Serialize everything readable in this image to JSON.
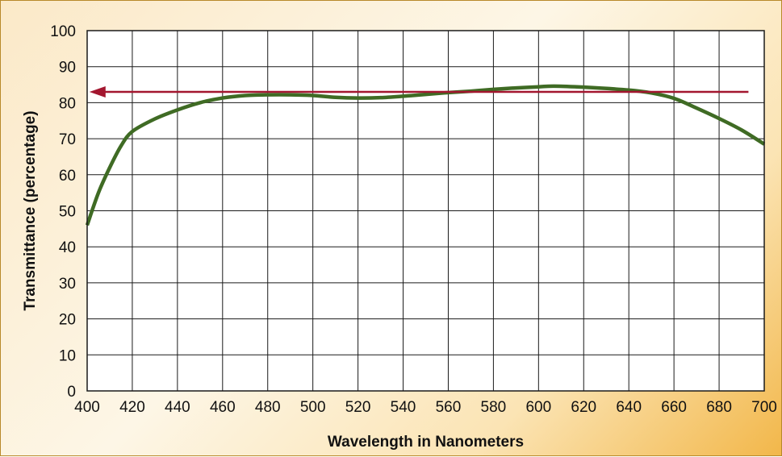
{
  "chart_data": {
    "type": "line",
    "title": "",
    "xlabel": "Wavelength in Nanometers",
    "ylabel": "Transmittance (percentage)",
    "xlim": [
      400,
      700
    ],
    "ylim": [
      0,
      100
    ],
    "x_ticks": [
      400,
      420,
      440,
      460,
      480,
      500,
      520,
      540,
      560,
      580,
      600,
      620,
      640,
      660,
      680,
      700
    ],
    "y_ticks": [
      0,
      10,
      20,
      30,
      40,
      50,
      60,
      70,
      80,
      90,
      100
    ],
    "grid": true,
    "series": [
      {
        "color": "#3f6b24",
        "x": [
          400,
          405,
          410,
          415,
          420,
          430,
          440,
          450,
          460,
          470,
          480,
          490,
          500,
          510,
          520,
          530,
          540,
          550,
          560,
          570,
          580,
          590,
          600,
          607,
          620,
          640,
          650,
          660,
          670,
          680,
          690,
          700
        ],
        "y": [
          46,
          55,
          62,
          68,
          72,
          75.5,
          78,
          80,
          81.3,
          82,
          82.2,
          82.2,
          82,
          81.5,
          81.3,
          81.4,
          81.8,
          82.3,
          82.8,
          83.2,
          83.7,
          84.1,
          84.4,
          84.6,
          84.3,
          83.5,
          82.7,
          81.2,
          78.5,
          75.6,
          72.4,
          68.5
        ]
      }
    ],
    "annotations": [
      {
        "type": "arrow",
        "direction": "left",
        "y": 83,
        "x_start": 693,
        "x_end": 401,
        "color": "#a3162f"
      }
    ]
  }
}
